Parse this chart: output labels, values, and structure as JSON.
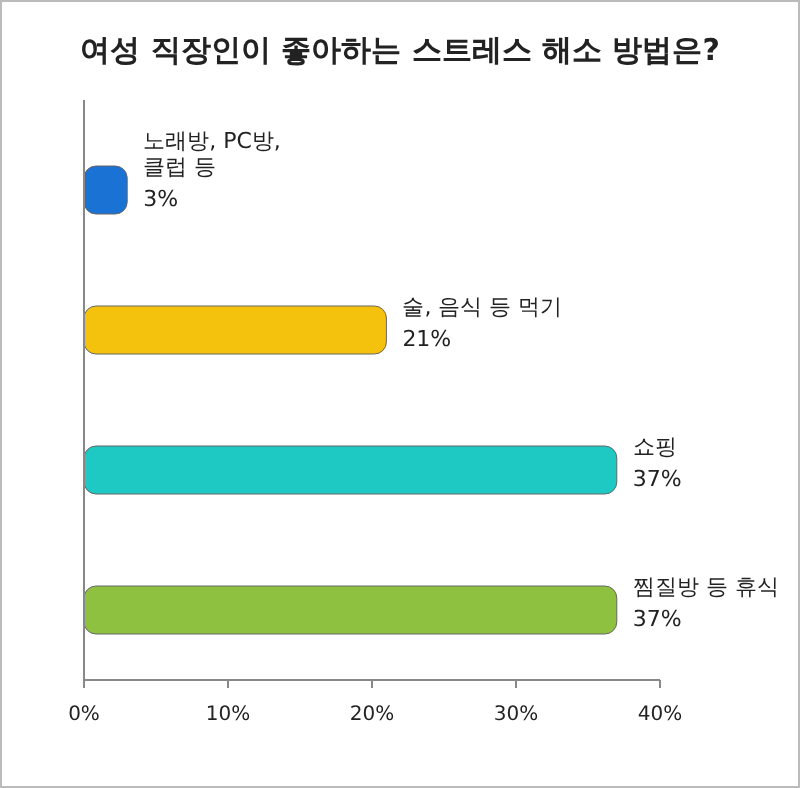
{
  "chart_data": {
    "type": "bar",
    "orientation": "horizontal",
    "title": "여성 직장인이 좋아하는 스트레스 해소 방법은?",
    "categories": [
      "노래방, PC방, 클럽 등",
      "술, 음식 등 먹기",
      "쇼핑",
      "찜질방 등 휴식"
    ],
    "values": [
      3,
      21,
      37,
      37
    ],
    "colors": [
      "#1a72d4",
      "#f4c20d",
      "#1ec9c4",
      "#8dc13f"
    ],
    "value_labels": [
      "3%",
      "21%",
      "37%",
      "37%"
    ],
    "xlim": [
      0,
      40
    ],
    "xticks": [
      {
        "value": 0,
        "label": "0%"
      },
      {
        "value": 10,
        "label": "10%"
      },
      {
        "value": 20,
        "label": "20%"
      },
      {
        "value": 30,
        "label": "30%"
      },
      {
        "value": 40,
        "label": "40%"
      }
    ],
    "grid": false
  }
}
